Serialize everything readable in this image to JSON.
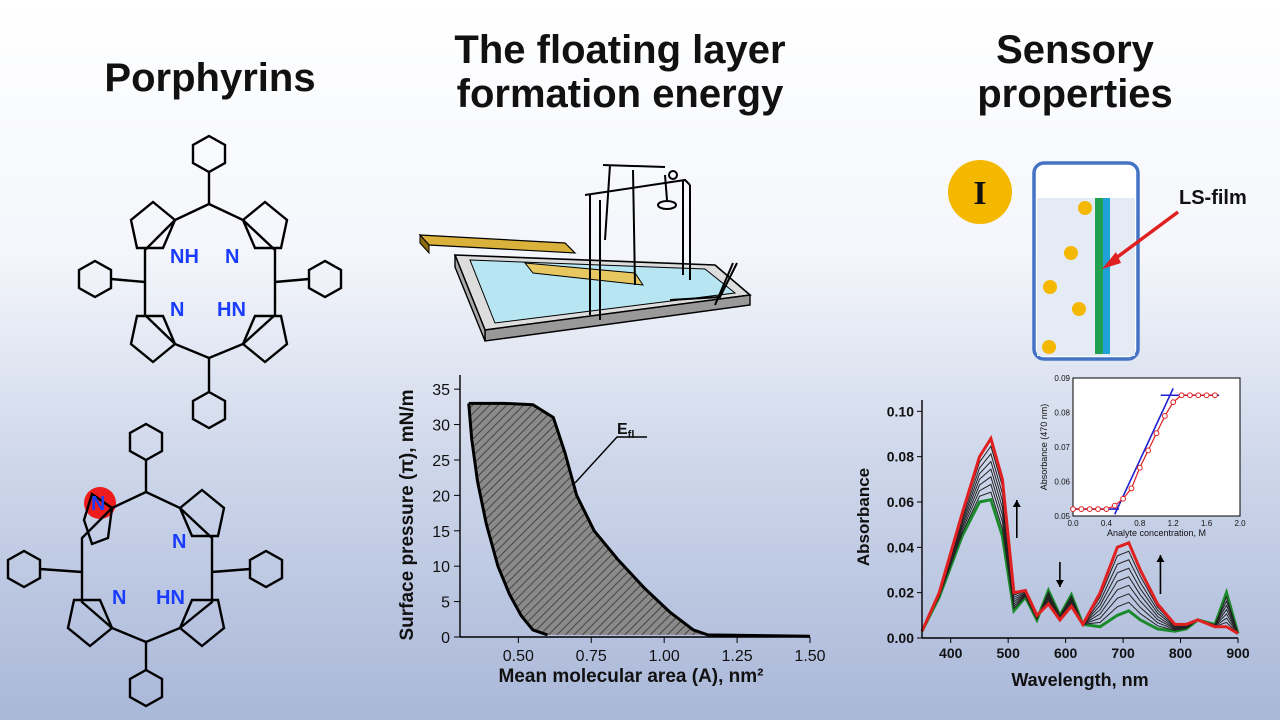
{
  "headings": {
    "porphyrins": "Porphyrins",
    "floating_line1": "The floating layer",
    "floating_line2": "formation energy",
    "sensory_line1": "Sensory",
    "sensory_line2": "properties"
  },
  "structure_labels": {
    "nh": "NH",
    "n": "N",
    "hn": "HN"
  },
  "sensor": {
    "badge": "I",
    "film_label": "LS-film",
    "colors": {
      "badge": "#f5b800",
      "cell_border": "#4472c4",
      "film_blue": "#1fa2d8",
      "film_green": "#22a050",
      "analyte": "#f5b800",
      "arrow": "#e02020"
    }
  },
  "isotherm_chart": {
    "type": "area",
    "ylabel": "Surface pressure (π), mN/m",
    "xlabel": "Mean molecular area (A), nm²",
    "x_ticks": [
      "0.50",
      "0.75",
      "1.00",
      "1.25",
      "1.50"
    ],
    "y_ticks": [
      "0",
      "5",
      "10",
      "15",
      "20",
      "25",
      "30",
      "35"
    ],
    "annotation": "E",
    "annotation_sub": "fl",
    "chart_data": {
      "type": "area",
      "xlim": [
        0.3,
        1.5
      ],
      "ylim": [
        0,
        37
      ],
      "compression": {
        "x": [
          0.33,
          0.45,
          0.55,
          0.62,
          0.66,
          0.7,
          0.76,
          0.84,
          0.93,
          1.02,
          1.1,
          1.15
        ],
        "y": [
          33,
          33,
          32.8,
          31,
          26,
          20,
          15,
          11,
          7,
          3.5,
          1,
          0.3
        ]
      },
      "expansion": {
        "x": [
          0.33,
          0.34,
          0.36,
          0.39,
          0.43,
          0.47,
          0.51,
          0.55,
          0.6
        ],
        "y": [
          33,
          28,
          22,
          16,
          10,
          6,
          3,
          1,
          0.3
        ]
      },
      "baseline_end": 1.5
    }
  },
  "spectra_chart": {
    "type": "line",
    "ylabel": "Absorbance",
    "xlabel": "Wavelength, nm",
    "x_ticks": [
      "400",
      "500",
      "600",
      "700",
      "800",
      "900"
    ],
    "y_ticks": [
      "0.00",
      "0.02",
      "0.04",
      "0.06",
      "0.08",
      "0.10"
    ],
    "chart_data": {
      "type": "line",
      "xlim": [
        350,
        900
      ],
      "ylim": [
        0,
        0.105
      ],
      "initial": {
        "x": [
          350,
          380,
          420,
          450,
          470,
          490,
          510,
          530,
          550,
          570,
          590,
          610,
          630,
          660,
          690,
          710,
          730,
          760,
          790,
          810,
          830,
          860,
          880,
          900
        ],
        "y": [
          0.003,
          0.018,
          0.045,
          0.06,
          0.061,
          0.045,
          0.012,
          0.018,
          0.008,
          0.021,
          0.01,
          0.019,
          0.006,
          0.005,
          0.01,
          0.012,
          0.008,
          0.004,
          0.003,
          0.004,
          0.008,
          0.006,
          0.02,
          0.002
        ]
      },
      "final": {
        "x": [
          350,
          380,
          420,
          450,
          470,
          490,
          510,
          530,
          550,
          570,
          590,
          610,
          630,
          660,
          690,
          710,
          730,
          760,
          790,
          810,
          830,
          860,
          880,
          900
        ],
        "y": [
          0.003,
          0.02,
          0.055,
          0.08,
          0.088,
          0.07,
          0.02,
          0.021,
          0.01,
          0.015,
          0.008,
          0.014,
          0.006,
          0.02,
          0.04,
          0.042,
          0.03,
          0.015,
          0.006,
          0.006,
          0.008,
          0.005,
          0.005,
          0.002
        ]
      }
    },
    "inset": {
      "ylabel": "Absorbance (470 nm)",
      "xlabel": "Analyte concentration, M",
      "x_ticks": [
        "0.0",
        "0.4",
        "0.8",
        "1.2",
        "1.6",
        "2.0"
      ],
      "y_ticks": [
        "0.05",
        "0.06",
        "0.07",
        "0.08",
        "0.09"
      ],
      "chart_data": {
        "type": "scatter",
        "xlim": [
          0,
          2
        ],
        "ylim": [
          0.05,
          0.09
        ],
        "x": [
          0.0,
          0.1,
          0.2,
          0.3,
          0.4,
          0.5,
          0.6,
          0.7,
          0.8,
          0.9,
          1.0,
          1.1,
          1.2,
          1.3,
          1.4,
          1.5,
          1.6,
          1.7
        ],
        "y": [
          0.052,
          0.052,
          0.052,
          0.052,
          0.052,
          0.053,
          0.055,
          0.058,
          0.064,
          0.069,
          0.074,
          0.079,
          0.083,
          0.085,
          0.085,
          0.085,
          0.085,
          0.085
        ]
      }
    }
  }
}
